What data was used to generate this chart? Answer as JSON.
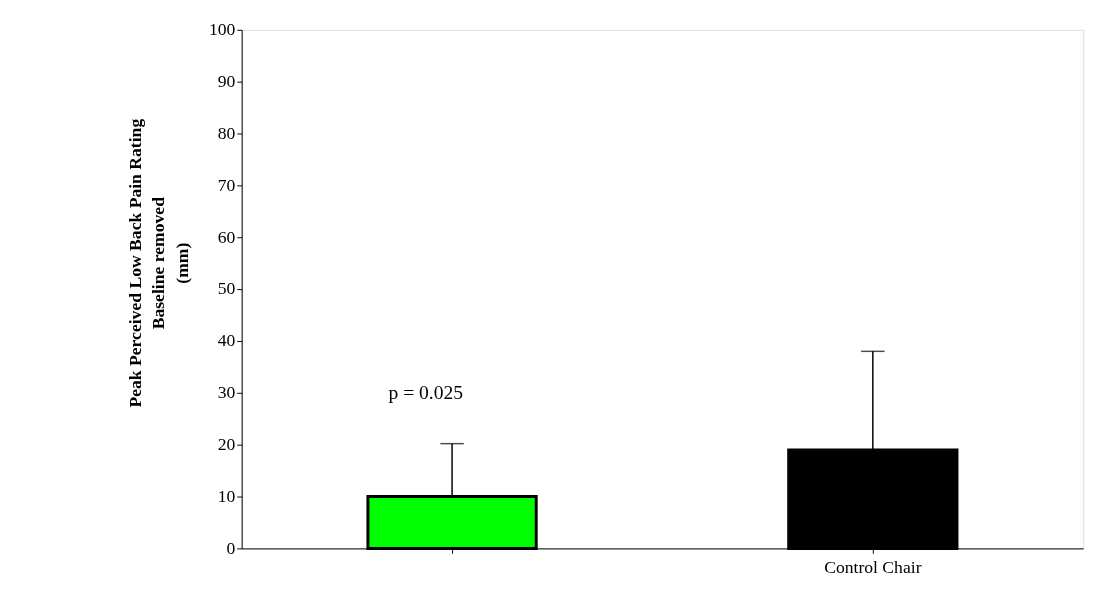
{
  "chart_data": {
    "type": "bar",
    "categories": [
      null,
      "Control Chair"
    ],
    "values": [
      10,
      19
    ],
    "colors": [
      "#00ff00",
      "#000000"
    ],
    "errors": [
      [
        10,
        20.2
      ],
      [
        19,
        38
      ]
    ],
    "ylabel": "Peak Perceived Low Back Pain Rating\nBaseline removed\n(mm)",
    "ylim": [
      0,
      100
    ],
    "yticks": [
      0,
      10,
      20,
      30,
      40,
      50,
      60,
      70,
      80,
      90,
      100
    ],
    "grid": false,
    "annotations": [
      "p = 0.025"
    ]
  }
}
